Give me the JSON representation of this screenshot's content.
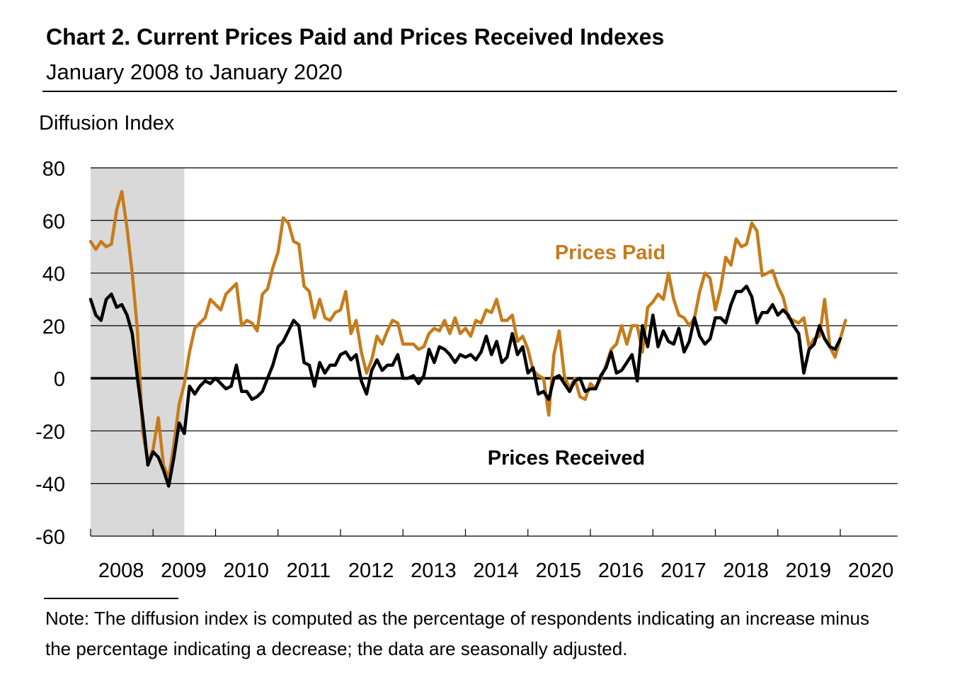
{
  "title": "Chart 2. Current Prices Paid and Prices Received Indexes",
  "subtitle": "January 2008 to January 2020",
  "note": "Note: The diffusion index is computed as the percentage of respondents indicating an increase minus the percentage indicating a decrease; the data are seasonally adjusted.",
  "colors": {
    "prices_paid": "#C67C1C",
    "prices_received": "#000000",
    "recession": "#D9D9D9"
  },
  "chart_data": {
    "type": "line",
    "ylabel": "Diffusion Index",
    "xlabel": "",
    "ylim": [
      -60,
      80
    ],
    "yticks": [
      80,
      60,
      40,
      20,
      0,
      -20,
      -40,
      -60
    ],
    "x_ticks": [
      "2008",
      "2009",
      "2010",
      "2011",
      "2012",
      "2013",
      "2014",
      "2015",
      "2016",
      "2017",
      "2018",
      "2019",
      "2020"
    ],
    "x_start": "2008-01",
    "grid": true,
    "recession_shading": {
      "start": "2008-01",
      "end": "2009-06"
    },
    "series": [
      {
        "name": "Prices Paid",
        "values": [
          52,
          49,
          52,
          50,
          51,
          64,
          71,
          57,
          40,
          18,
          -20,
          -32,
          -27,
          -15,
          -33,
          -38,
          -25,
          -10,
          -2,
          10,
          19,
          21,
          23,
          30,
          28,
          26,
          32,
          34,
          36,
          20,
          22,
          21,
          18,
          32,
          34,
          42,
          48,
          61,
          59,
          52,
          51,
          35,
          33,
          23,
          30,
          23,
          22,
          25,
          26,
          33,
          17,
          22,
          10,
          2,
          7,
          16,
          13,
          18,
          22,
          21,
          13,
          13,
          13,
          11,
          12,
          17,
          19,
          18,
          22,
          17,
          23,
          17,
          19,
          16,
          22,
          21,
          26,
          25,
          30,
          22,
          22,
          24,
          14,
          16,
          11,
          3,
          1,
          0,
          -14,
          9,
          18,
          1,
          -4,
          0,
          -7,
          -8,
          -2,
          -4,
          0,
          5,
          11,
          13,
          20,
          13,
          20,
          20,
          10,
          27,
          29,
          32,
          30,
          40,
          30,
          24,
          23,
          20,
          23,
          33,
          40,
          38,
          26,
          34,
          46,
          43,
          53,
          50,
          51,
          59,
          56,
          39,
          40,
          41,
          35,
          31,
          23,
          22,
          21,
          23,
          12,
          15,
          16,
          30,
          12,
          8,
          15,
          22
        ],
        "color": "#C67C1C"
      },
      {
        "name": "Prices Received",
        "values": [
          30,
          24,
          22,
          30,
          32,
          27,
          28,
          24,
          17,
          0,
          -15,
          -33,
          -28,
          -30,
          -35,
          -41,
          -30,
          -17,
          -21,
          -3,
          -6,
          -3,
          -1,
          -2,
          0,
          -2,
          -4,
          -3,
          5,
          -5,
          -5,
          -8,
          -7,
          -5,
          0,
          5,
          12,
          14,
          18,
          22,
          20,
          6,
          5,
          -3,
          6,
          2,
          5,
          5,
          9,
          10,
          7,
          9,
          -1,
          -6,
          3,
          7,
          3,
          5,
          5,
          9,
          0,
          0,
          1,
          -2,
          1,
          11,
          6,
          12,
          11,
          9,
          6,
          9,
          8,
          9,
          7,
          10,
          16,
          9,
          14,
          6,
          8,
          17,
          9,
          12,
          2,
          4,
          -6,
          -5,
          -8,
          0,
          1,
          -2,
          -5,
          -1,
          0,
          -5,
          -4,
          -4,
          1,
          4,
          10,
          2,
          3,
          6,
          9,
          -1,
          20,
          12,
          24,
          12,
          18,
          14,
          13,
          19,
          10,
          14,
          23,
          16,
          13,
          15,
          23,
          23,
          21,
          28,
          33,
          33,
          35,
          31,
          21,
          25,
          25,
          28,
          24,
          26,
          24,
          20,
          17,
          2,
          11,
          13,
          20,
          15,
          12,
          11,
          15
        ],
        "color": "#000000"
      }
    ]
  },
  "annotations": {
    "prices_paid": "Prices Paid",
    "prices_received": "Prices Received"
  }
}
